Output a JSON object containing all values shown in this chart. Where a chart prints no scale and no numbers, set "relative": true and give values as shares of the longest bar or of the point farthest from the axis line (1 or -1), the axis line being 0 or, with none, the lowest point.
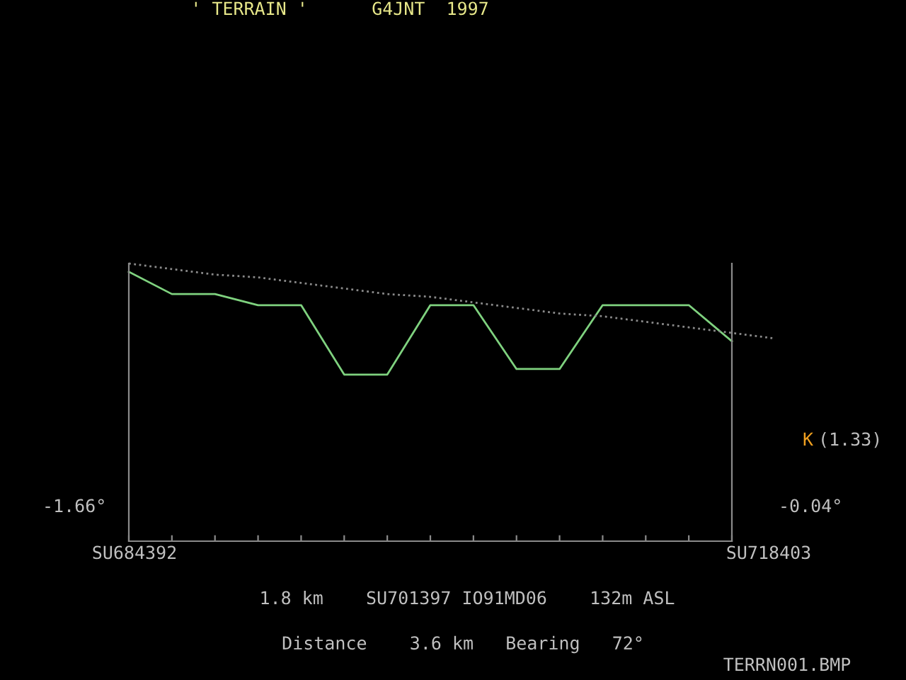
{
  "chart_data": {
    "type": "line",
    "relative": true,
    "title": "' TERRAIN '      G4JNT  1997",
    "categories": [
      null,
      null,
      null,
      null,
      null,
      null,
      null,
      null,
      null,
      null,
      null,
      null,
      null,
      null,
      null,
      null
    ],
    "series": [
      {
        "color": "#7fd27f",
        "line_style": "solid",
        "values": [
          0.97,
          0.89,
          0.89,
          0.85,
          0.85,
          0.6,
          0.6,
          0.85,
          0.85,
          0.62,
          0.62,
          0.85,
          0.85,
          0.85,
          0.72,
          null
        ]
      },
      {
        "color": "#8a8a8a",
        "line_style": "dotted",
        "values": [
          1.0,
          0.98,
          0.96,
          0.95,
          0.93,
          0.91,
          0.89,
          0.88,
          0.86,
          0.84,
          0.82,
          0.81,
          0.79,
          0.77,
          0.75,
          0.73
        ]
      }
    ],
    "annotations": [
      "-1.66°",
      "-0.04°",
      "K",
      "(1.33)",
      "SU684392",
      "SU718403",
      "1.8 km    SU701397 IO91MD06    132m ASL",
      "Distance    3.6 km   Bearing   72°",
      "TERRN001.BMP"
    ],
    "grid": false,
    "legend": false,
    "marker": "none"
  }
}
